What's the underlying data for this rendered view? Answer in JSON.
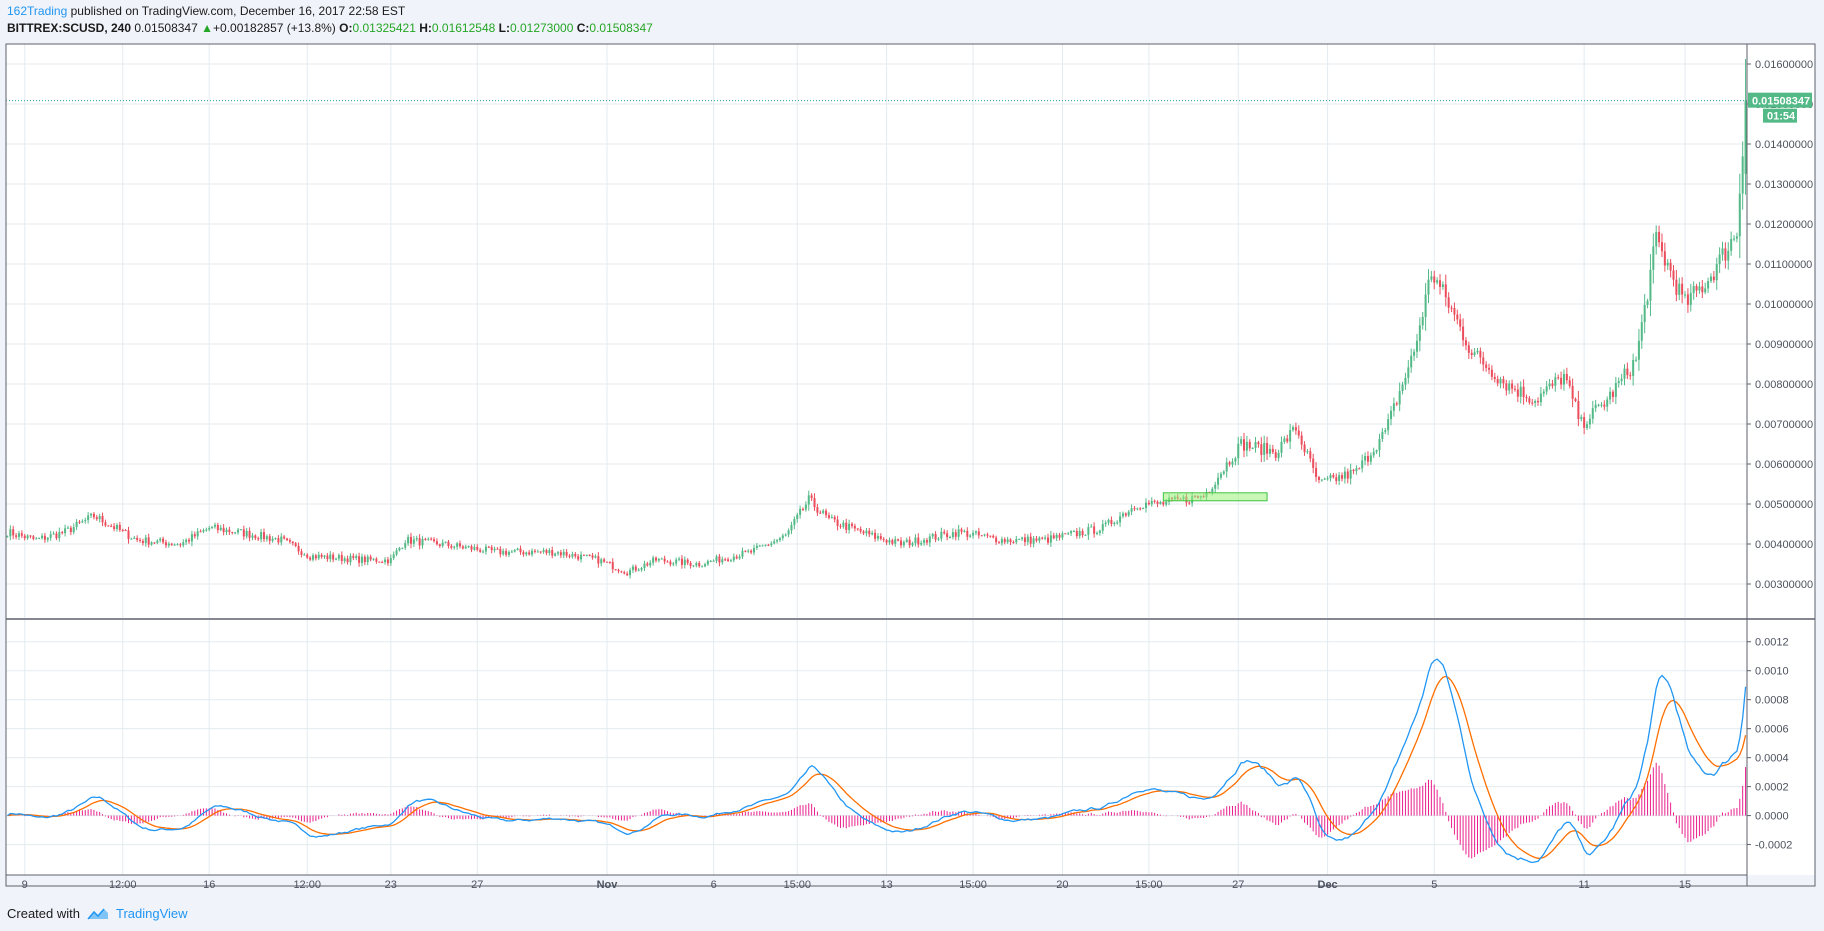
{
  "header": {
    "author": "162Trading",
    "published_text": "published on TradingView.com, December 16, 2017 22:58 EST",
    "symbol": "BITTREX:SCUSD, 240",
    "last": "0.01508347",
    "change_arrow": "▲",
    "change": "+0.00182857 (+13.8%)",
    "o_label": "O:",
    "o": "0.01325421",
    "h_label": "H:",
    "h": "0.01612548",
    "l_label": "L:",
    "l": "0.01273000",
    "c_label": "C:",
    "c": "0.01508347"
  },
  "footer": {
    "created_with": "Created with",
    "brand": "TradingView"
  },
  "colors": {
    "up": "#53b987",
    "down": "#eb4d5c",
    "macd": "#2196f3",
    "signal": "#ff6f00",
    "hist": "#e91e8c",
    "highlight": "#9cf07a",
    "last_price_bg": "#53b987",
    "grid": "#e3ebf0"
  },
  "chart_data": [
    {
      "type": "candlestick",
      "name": "price",
      "y_ticks": [
        "0.01600000",
        "0.01500000",
        "0.01400000",
        "0.01300000",
        "0.01200000",
        "0.01100000",
        "0.01000000",
        "0.00900000",
        "0.00800000",
        "0.00700000",
        "0.00600000",
        "0.00500000",
        "0.00400000",
        "0.00300000"
      ],
      "y_tick_values": [
        0.016,
        0.015,
        0.014,
        0.013,
        0.012,
        0.011,
        0.01,
        0.009,
        0.008,
        0.007,
        0.006,
        0.005,
        0.004,
        0.003
      ],
      "ylim": [
        0.00215,
        0.0165
      ],
      "x_ticks": [
        "9",
        "12:00",
        "16",
        "12:00",
        "23",
        "27",
        "Nov",
        "6",
        "15:00",
        "13",
        "15:00",
        "20",
        "15:00",
        "27",
        "Dec",
        "5",
        "11",
        "15"
      ],
      "x_tick_bars": [
        6,
        40,
        70,
        104,
        133,
        163,
        208,
        245,
        274,
        305,
        335,
        366,
        396,
        427,
        458,
        495,
        547,
        582
      ],
      "n_bars": 604,
      "last_price_label": "0.01508347",
      "countdown_label": "01:54",
      "close_anchors": [
        [
          0,
          0.0043
        ],
        [
          10,
          0.0041
        ],
        [
          20,
          0.0043
        ],
        [
          30,
          0.0047
        ],
        [
          45,
          0.0041
        ],
        [
          60,
          0.004
        ],
        [
          70,
          0.0044
        ],
        [
          80,
          0.0043
        ],
        [
          95,
          0.0041
        ],
        [
          105,
          0.0037
        ],
        [
          125,
          0.0036
        ],
        [
          133,
          0.0036
        ],
        [
          138,
          0.0041
        ],
        [
          150,
          0.004
        ],
        [
          170,
          0.0038
        ],
        [
          190,
          0.0038
        ],
        [
          205,
          0.0036
        ],
        [
          215,
          0.0033
        ],
        [
          225,
          0.0036
        ],
        [
          240,
          0.0035
        ],
        [
          258,
          0.0038
        ],
        [
          270,
          0.0042
        ],
        [
          278,
          0.0051
        ],
        [
          285,
          0.0046
        ],
        [
          300,
          0.0042
        ],
        [
          310,
          0.004
        ],
        [
          330,
          0.0043
        ],
        [
          345,
          0.0041
        ],
        [
          360,
          0.0041
        ],
        [
          380,
          0.0044
        ],
        [
          392,
          0.005
        ],
        [
          400,
          0.005
        ],
        [
          415,
          0.0052
        ],
        [
          428,
          0.0065
        ],
        [
          440,
          0.0063
        ],
        [
          447,
          0.0069
        ],
        [
          455,
          0.0055
        ],
        [
          468,
          0.0058
        ],
        [
          478,
          0.0068
        ],
        [
          488,
          0.0088
        ],
        [
          494,
          0.0108
        ],
        [
          500,
          0.01
        ],
        [
          508,
          0.0088
        ],
        [
          520,
          0.008
        ],
        [
          530,
          0.0076
        ],
        [
          540,
          0.0082
        ],
        [
          546,
          0.007
        ],
        [
          555,
          0.0076
        ],
        [
          565,
          0.0086
        ],
        [
          572,
          0.0116
        ],
        [
          582,
          0.01
        ],
        [
          590,
          0.0106
        ],
        [
          600,
          0.0118
        ],
        [
          603,
          0.01508347
        ]
      ]
    },
    {
      "type": "macd",
      "name": "MACD",
      "y_ticks": [
        "0.0012",
        "0.0010",
        "0.0008",
        "0.0006",
        "0.0004",
        "0.0002",
        "0.0000",
        "-0.0002"
      ],
      "y_tick_values": [
        0.0012,
        0.001,
        0.0008,
        0.0006,
        0.0004,
        0.0002,
        0.0,
        -0.0002
      ],
      "ylim": [
        -0.00041,
        0.00135
      ]
    }
  ]
}
